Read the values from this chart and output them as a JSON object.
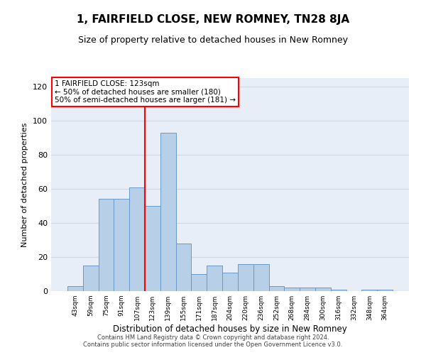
{
  "title": "1, FAIRFIELD CLOSE, NEW ROMNEY, TN28 8JA",
  "subtitle": "Size of property relative to detached houses in New Romney",
  "xlabel": "Distribution of detached houses by size in New Romney",
  "ylabel": "Number of detached properties",
  "footer_line1": "Contains HM Land Registry data © Crown copyright and database right 2024.",
  "footer_line2": "Contains public sector information licensed under the Open Government Licence v3.0.",
  "categories": [
    "43sqm",
    "59sqm",
    "75sqm",
    "91sqm",
    "107sqm",
    "123sqm",
    "139sqm",
    "155sqm",
    "171sqm",
    "187sqm",
    "204sqm",
    "220sqm",
    "236sqm",
    "252sqm",
    "268sqm",
    "284sqm",
    "300sqm",
    "316sqm",
    "332sqm",
    "348sqm",
    "364sqm"
  ],
  "values": [
    3,
    15,
    54,
    54,
    61,
    50,
    93,
    28,
    10,
    15,
    11,
    16,
    16,
    3,
    2,
    2,
    2,
    1,
    0,
    1,
    1
  ],
  "bar_color": "#b8cfe8",
  "bar_edge_color": "#6699cc",
  "red_line_index": 5,
  "annotation_line1": "1 FAIRFIELD CLOSE: 123sqm",
  "annotation_line2": "← 50% of detached houses are smaller (180)",
  "annotation_line3": "50% of semi-detached houses are larger (181) →",
  "ylim": [
    0,
    125
  ],
  "yticks": [
    0,
    20,
    40,
    60,
    80,
    100,
    120
  ],
  "grid_color": "#d0d8e8",
  "plot_bg_color": "#e8eef8",
  "title_fontsize": 11,
  "subtitle_fontsize": 9,
  "xlabel_fontsize": 8.5,
  "ylabel_fontsize": 8
}
